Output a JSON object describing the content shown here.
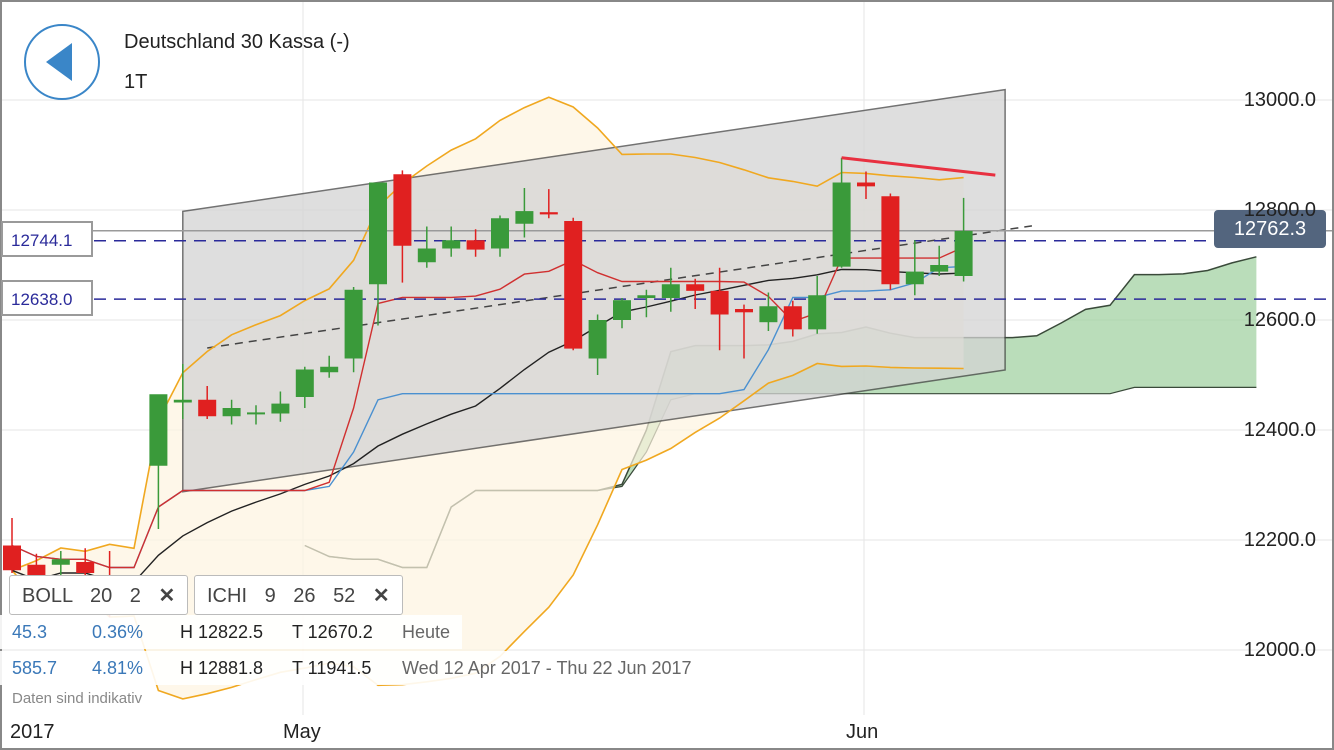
{
  "header": {
    "title": "Deutschland 30 Kassa (-)",
    "period": "1T"
  },
  "price_lines": {
    "upper_label": "12744.1",
    "lower_label": "12638.0",
    "last_price": "12762.3"
  },
  "indicators": {
    "boll": {
      "name": "BOLL",
      "p1": "20",
      "p2": "2"
    },
    "ichi": {
      "name": "ICHI",
      "p1": "9",
      "p2": "26",
      "p3": "52"
    }
  },
  "stats": {
    "today": {
      "change": "45.3",
      "change_pct": "0.36%",
      "high": "H 12822.5",
      "low": "T 12670.2",
      "label": "Heute"
    },
    "range": {
      "change": "585.7",
      "change_pct": "4.81%",
      "high": "H 12881.8",
      "low": "T 11941.5",
      "label": "Wed 12 Apr 2017 - Thu 22 Jun 2017"
    }
  },
  "disclaimer": "Daten sind indikativ",
  "colors": {
    "up": "#3a9a3a",
    "down": "#e02020",
    "boll": "#f0a820",
    "tenkan": "#d03030",
    "kijun": "#4a90d0",
    "kumo": "#9dcf9d",
    "channel": "#d4d4d4",
    "trend": "#e83040"
  },
  "chart_data": {
    "type": "candlestick",
    "ylim": [
      11900,
      13100
    ],
    "yticks": [
      "13000.0",
      "12800.0",
      "12600.0",
      "12400.0",
      "12200.0",
      "12000.0"
    ],
    "xticks": [
      "2017",
      "May",
      "Jun"
    ],
    "candles": [
      {
        "o": 12190,
        "h": 12240,
        "l": 12140,
        "c": 12145
      },
      {
        "o": 12155,
        "h": 12175,
        "l": 12100,
        "c": 12110
      },
      {
        "o": 12155,
        "h": 12180,
        "l": 12090,
        "c": 12165
      },
      {
        "o": 12160,
        "h": 12185,
        "l": 12120,
        "c": 12140
      },
      {
        "o": 12080,
        "h": 12180,
        "l": 12060,
        "c": 12070
      },
      {
        "o": 12100,
        "h": 12130,
        "l": 12075,
        "c": 12110
      },
      {
        "o": 12335,
        "h": 12460,
        "l": 12220,
        "c": 12465
      },
      {
        "o": 12450,
        "h": 12520,
        "l": 12420,
        "c": 12455
      },
      {
        "o": 12455,
        "h": 12480,
        "l": 12420,
        "c": 12425
      },
      {
        "o": 12425,
        "h": 12455,
        "l": 12410,
        "c": 12440
      },
      {
        "o": 12430,
        "h": 12445,
        "l": 12410,
        "c": 12432
      },
      {
        "o": 12430,
        "h": 12470,
        "l": 12415,
        "c": 12448
      },
      {
        "o": 12460,
        "h": 12515,
        "l": 12440,
        "c": 12510
      },
      {
        "o": 12505,
        "h": 12535,
        "l": 12495,
        "c": 12515
      },
      {
        "o": 12530,
        "h": 12660,
        "l": 12505,
        "c": 12655
      },
      {
        "o": 12665,
        "h": 12850,
        "l": 12590,
        "c": 12850
      },
      {
        "o": 12865,
        "h": 12872,
        "l": 12668,
        "c": 12735
      },
      {
        "o": 12705,
        "h": 12770,
        "l": 12695,
        "c": 12730
      },
      {
        "o": 12730,
        "h": 12770,
        "l": 12715,
        "c": 12745
      },
      {
        "o": 12745,
        "h": 12765,
        "l": 12715,
        "c": 12728
      },
      {
        "o": 12730,
        "h": 12790,
        "l": 12715,
        "c": 12785
      },
      {
        "o": 12775,
        "h": 12840,
        "l": 12750,
        "c": 12798
      },
      {
        "o": 12796,
        "h": 12838,
        "l": 12785,
        "c": 12792
      },
      {
        "o": 12780,
        "h": 12786,
        "l": 12545,
        "c": 12548
      },
      {
        "o": 12530,
        "h": 12610,
        "l": 12500,
        "c": 12600
      },
      {
        "o": 12600,
        "h": 12640,
        "l": 12585,
        "c": 12636
      },
      {
        "o": 12640,
        "h": 12655,
        "l": 12605,
        "c": 12645
      },
      {
        "o": 12640,
        "h": 12695,
        "l": 12615,
        "c": 12665
      },
      {
        "o": 12665,
        "h": 12675,
        "l": 12620,
        "c": 12653
      },
      {
        "o": 12653,
        "h": 12695,
        "l": 12545,
        "c": 12610
      },
      {
        "o": 12620,
        "h": 12628,
        "l": 12530,
        "c": 12614
      },
      {
        "o": 12596,
        "h": 12650,
        "l": 12580,
        "c": 12625
      },
      {
        "o": 12625,
        "h": 12635,
        "l": 12570,
        "c": 12583
      },
      {
        "o": 12583,
        "h": 12680,
        "l": 12575,
        "c": 12645
      },
      {
        "o": 12697,
        "h": 12895,
        "l": 12695,
        "c": 12850
      },
      {
        "o": 12850,
        "h": 12870,
        "l": 12820,
        "c": 12843
      },
      {
        "o": 12825,
        "h": 12830,
        "l": 12655,
        "c": 12665
      },
      {
        "o": 12665,
        "h": 12745,
        "l": 12645,
        "c": 12688
      },
      {
        "o": 12688,
        "h": 12735,
        "l": 12680,
        "c": 12700
      },
      {
        "o": 12680,
        "h": 12822,
        "l": 12670,
        "c": 12762
      }
    ]
  }
}
